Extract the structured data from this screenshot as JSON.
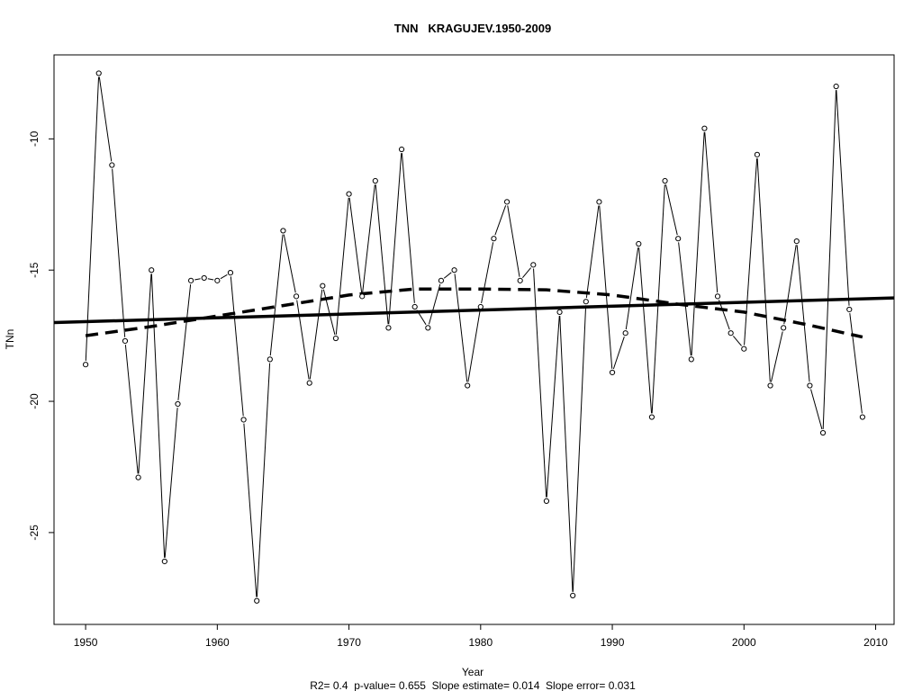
{
  "chart_data": {
    "type": "line",
    "title": "TNN   KRAGUJEV.1950-2009",
    "xlabel": "Year",
    "ylabel": "TNn",
    "subtitle": "R2= 0.4  p-value= 0.655  Slope estimate= 0.014  Slope error= 0.031",
    "xlim": [
      1947.6,
      2011.4
    ],
    "ylim": [
      -28.5,
      -6.8
    ],
    "xticks": [
      1950,
      1960,
      1970,
      1980,
      1990,
      2000,
      2010
    ],
    "yticks": [
      -25,
      -20,
      -15,
      -10
    ],
    "xtick_labels": [
      "1950",
      "1960",
      "1970",
      "1980",
      "1990",
      "2000",
      "2010"
    ],
    "ytick_labels": [
      "-25",
      "-20",
      "-15",
      "-10"
    ],
    "grid": false,
    "x": [
      1950,
      1951,
      1952,
      1953,
      1954,
      1955,
      1956,
      1957,
      1958,
      1959,
      1960,
      1961,
      1962,
      1963,
      1964,
      1965,
      1966,
      1967,
      1968,
      1969,
      1970,
      1971,
      1972,
      1973,
      1974,
      1975,
      1976,
      1977,
      1978,
      1979,
      1980,
      1981,
      1982,
      1983,
      1984,
      1985,
      1986,
      1987,
      1988,
      1989,
      1990,
      1991,
      1992,
      1993,
      1994,
      1995,
      1996,
      1997,
      1998,
      1999,
      2000,
      2001,
      2002,
      2003,
      2004,
      2005,
      2006,
      2007,
      2008,
      2009
    ],
    "series": [
      {
        "style": "thin line with circle markers",
        "values": [
          -18.6,
          -7.5,
          -11.0,
          -17.7,
          -22.9,
          -15.0,
          -26.1,
          -20.1,
          -15.4,
          -15.3,
          -15.4,
          -15.1,
          -20.7,
          -27.6,
          -18.4,
          -13.5,
          -16.0,
          -19.3,
          -15.6,
          -17.6,
          -12.1,
          -16.0,
          -11.6,
          -17.2,
          -10.4,
          -16.4,
          -17.2,
          -15.4,
          -15.0,
          -19.4,
          -16.4,
          -13.8,
          -12.4,
          -15.4,
          -14.8,
          -23.8,
          -16.6,
          -27.4,
          -16.2,
          -12.4,
          -18.9,
          -17.4,
          -14.0,
          -20.6,
          -11.6,
          -13.8,
          -18.4,
          -9.6,
          -16.0,
          -17.4,
          -18.0,
          -10.6,
          -19.4,
          -17.2,
          -13.9,
          -19.4,
          -21.2,
          -8.0,
          -16.5,
          -20.6
        ]
      },
      {
        "style": "thick solid linear trend",
        "x": [
          1947.6,
          2011.4
        ],
        "values": [
          -17.0,
          -16.06
        ]
      },
      {
        "style": "thick dashed smooth trend",
        "x": [
          1950,
          1955,
          1960,
          1965,
          1970,
          1975,
          1980,
          1985,
          1990,
          1995,
          2000,
          2005,
          2009
        ],
        "values": [
          -17.5,
          -17.15,
          -16.75,
          -16.35,
          -15.95,
          -15.72,
          -15.72,
          -15.75,
          -15.95,
          -16.3,
          -16.6,
          -17.1,
          -17.55
        ]
      }
    ]
  }
}
